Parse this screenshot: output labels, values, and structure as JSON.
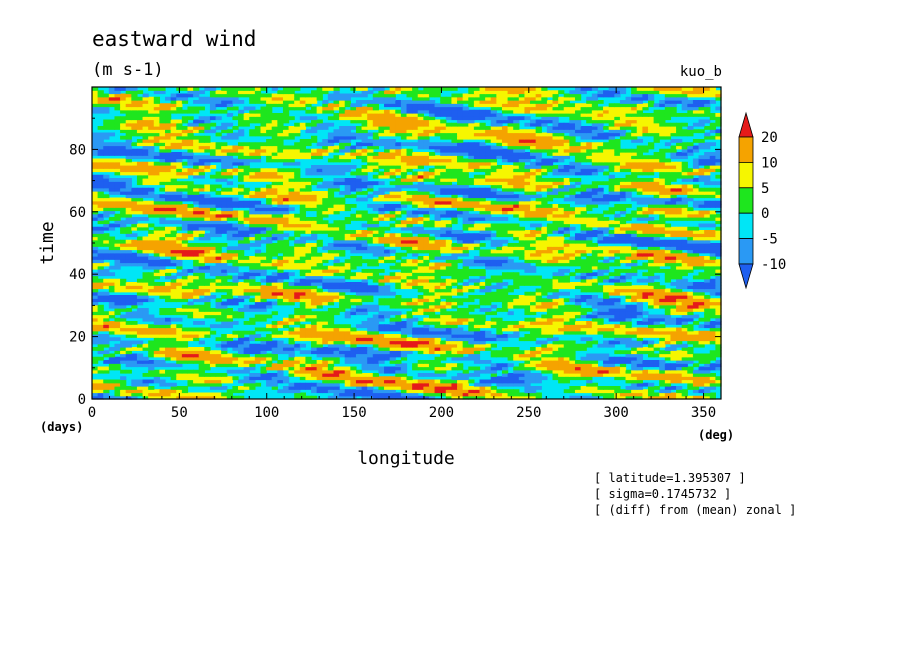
{
  "chart_data": {
    "type": "heatmap",
    "title": "eastward wind",
    "units": "(m s-1)",
    "run_label": "kuo_b",
    "xlabel": "longitude",
    "ylabel": "time",
    "x_unit": "(deg)",
    "y_unit": "(days)",
    "xlim": [
      0,
      360
    ],
    "ylim": [
      0,
      100
    ],
    "x_ticks": [
      0,
      50,
      100,
      150,
      200,
      250,
      300,
      350
    ],
    "y_ticks": [
      0,
      20,
      40,
      60,
      80
    ],
    "colorbar": {
      "levels": [
        -10,
        -5,
        0,
        5,
        10,
        20
      ],
      "labels": [
        "20",
        "10",
        "5",
        "0",
        "-5",
        "-10"
      ],
      "colors": [
        "#1e5ff0",
        "#2a99f4",
        "#00e6f6",
        "#1ee61e",
        "#f6f600",
        "#f5a300",
        "#e51a1a"
      ]
    },
    "notes": [
      "[ latitude=1.395307 ]",
      "[ sigma=0.1745732 ]",
      "[ (diff) from (mean) zonal ]"
    ]
  }
}
